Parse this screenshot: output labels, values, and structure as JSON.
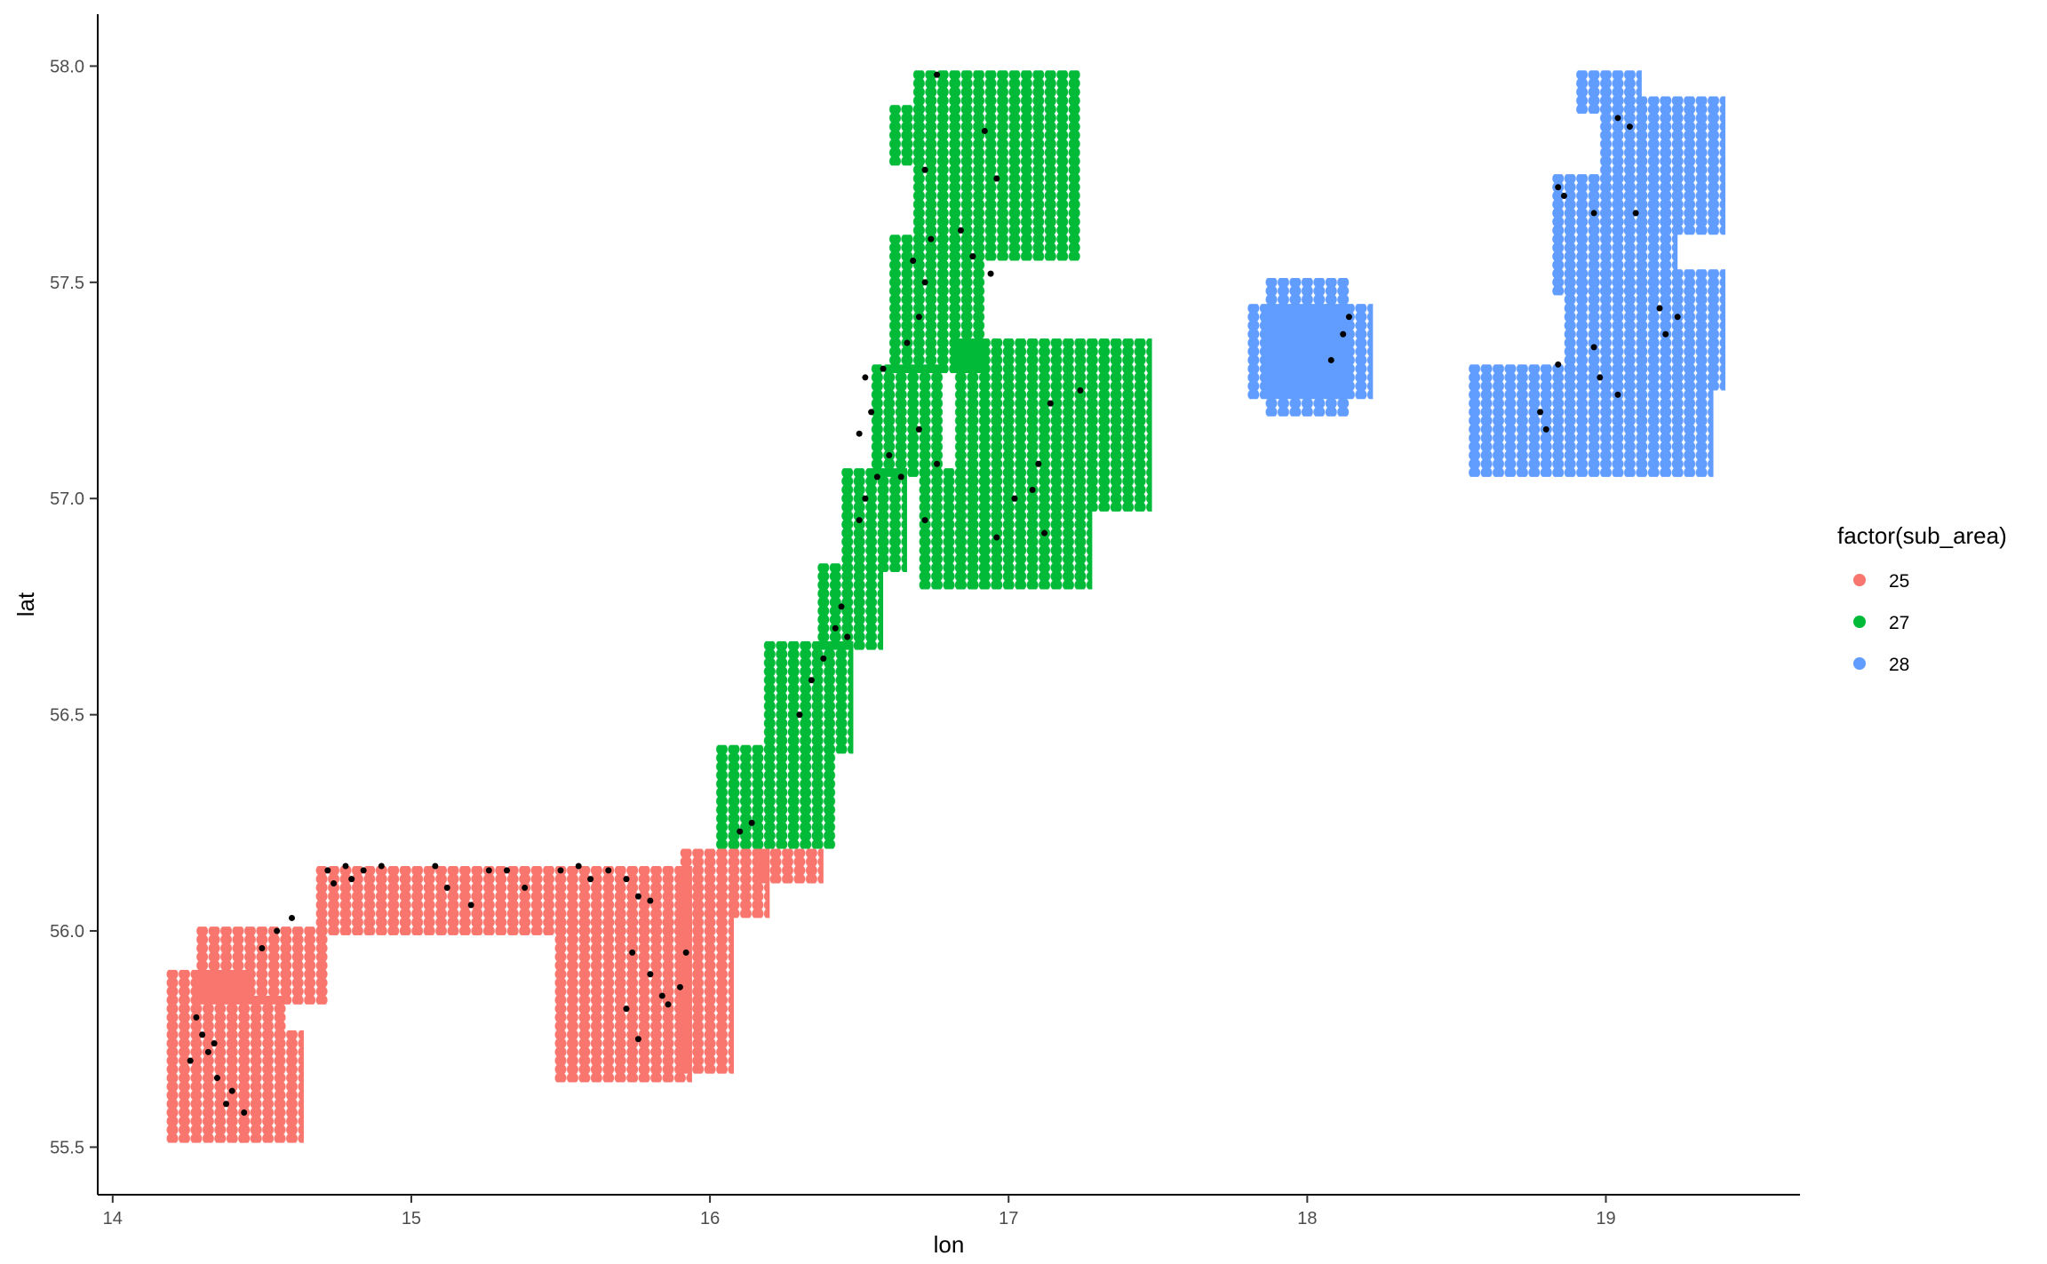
{
  "chart_data": {
    "type": "scatter",
    "title": "",
    "xlabel": "lon",
    "ylabel": "lat",
    "xlim": [
      13.95,
      19.65
    ],
    "ylim": [
      55.39,
      58.12
    ],
    "xticks": [
      14,
      15,
      16,
      17,
      18,
      19
    ],
    "yticks": [
      55.5,
      56.0,
      56.5,
      57.0,
      57.5,
      58.0
    ],
    "xtick_labels": [
      "14",
      "15",
      "16",
      "17",
      "18",
      "19"
    ],
    "ytick_labels": [
      "55.5",
      "56.0",
      "56.5",
      "57.0",
      "57.5",
      "58.0"
    ],
    "grid": false,
    "legend": {
      "title": "factor(sub_area)",
      "position": "right",
      "entries": [
        {
          "label": "25",
          "color": "#F8766D"
        },
        {
          "label": "27",
          "color": "#00BA38"
        },
        {
          "label": "28",
          "color": "#619CFF"
        }
      ]
    },
    "grid_spacing": {
      "lon": 0.04,
      "lat": 0.02
    },
    "series": [
      {
        "name": "25",
        "color": "#F8766D",
        "regions": [
          {
            "lon": [
              14.2,
              14.44
            ],
            "lat": [
              55.52,
              55.9
            ]
          },
          {
            "lon": [
              14.44,
              14.62
            ],
            "lat": [
              55.52,
              55.76
            ]
          },
          {
            "lon": [
              14.44,
              14.56
            ],
            "lat": [
              55.76,
              55.84
            ]
          },
          {
            "lon": [
              14.3,
              14.7
            ],
            "lat": [
              55.84,
              56.0
            ]
          },
          {
            "lon": [
              14.7,
              15.92
            ],
            "lat": [
              56.0,
              56.14
            ]
          },
          {
            "lon": [
              15.5,
              15.92
            ],
            "lat": [
              55.66,
              56.02
            ]
          },
          {
            "lon": [
              15.92,
              16.06
            ],
            "lat": [
              55.68,
              56.1
            ]
          },
          {
            "lon": [
              15.92,
              16.18
            ],
            "lat": [
              56.04,
              56.18
            ]
          },
          {
            "lon": [
              16.18,
              16.36
            ],
            "lat": [
              56.12,
              56.18
            ]
          }
        ]
      },
      {
        "name": "27",
        "color": "#00BA38",
        "regions": [
          {
            "lon": [
              16.04,
              16.4
            ],
            "lat": [
              56.2,
              56.42
            ]
          },
          {
            "lon": [
              16.2,
              16.46
            ],
            "lat": [
              56.42,
              56.66
            ]
          },
          {
            "lon": [
              16.38,
              16.56
            ],
            "lat": [
              56.66,
              56.84
            ]
          },
          {
            "lon": [
              16.46,
              16.64
            ],
            "lat": [
              56.84,
              57.06
            ]
          },
          {
            "lon": [
              16.56,
              16.76
            ],
            "lat": [
              57.06,
              57.3
            ]
          },
          {
            "lon": [
              16.62,
              16.9
            ],
            "lat": [
              57.3,
              57.6
            ]
          },
          {
            "lon": [
              16.7,
              17.22
            ],
            "lat": [
              57.56,
              57.98
            ]
          },
          {
            "lon": [
              16.62,
              16.72
            ],
            "lat": [
              57.78,
              57.9
            ]
          },
          {
            "lon": [
              16.72,
              16.92
            ],
            "lat": [
              56.8,
              57.06
            ]
          },
          {
            "lon": [
              16.84,
              17.46
            ],
            "lat": [
              56.98,
              57.36
            ]
          },
          {
            "lon": [
              16.84,
              17.26
            ],
            "lat": [
              56.8,
              56.98
            ]
          }
        ]
      },
      {
        "name": "28",
        "color": "#619CFF",
        "regions": [
          {
            "lon": [
              17.82,
              18.2
            ],
            "lat": [
              57.24,
              57.44
            ]
          },
          {
            "lon": [
              17.88,
              18.12
            ],
            "lat": [
              57.2,
              57.5
            ]
          },
          {
            "lon": [
              18.56,
              19.34
            ],
            "lat": [
              57.06,
              57.3
            ]
          },
          {
            "lon": [
              18.88,
              19.38
            ],
            "lat": [
              57.26,
              57.52
            ]
          },
          {
            "lon": [
              18.84,
              19.22
            ],
            "lat": [
              57.48,
              57.74
            ]
          },
          {
            "lon": [
              19.0,
              19.38
            ],
            "lat": [
              57.62,
              57.92
            ]
          },
          {
            "lon": [
              18.92,
              19.1
            ],
            "lat": [
              57.9,
              57.98
            ]
          }
        ]
      },
      {
        "name": "",
        "color": "#000000",
        "marker": "small-dot",
        "points": [
          [
            14.28,
            55.8
          ],
          [
            14.3,
            55.76
          ],
          [
            14.32,
            55.72
          ],
          [
            14.35,
            55.66
          ],
          [
            14.38,
            55.6
          ],
          [
            14.44,
            55.58
          ],
          [
            14.26,
            55.7
          ],
          [
            14.4,
            55.63
          ],
          [
            14.5,
            55.96
          ],
          [
            14.6,
            56.03
          ],
          [
            14.55,
            56.0
          ],
          [
            14.34,
            55.74
          ],
          [
            14.72,
            56.14
          ],
          [
            14.78,
            56.15
          ],
          [
            14.84,
            56.14
          ],
          [
            14.9,
            56.15
          ],
          [
            14.74,
            56.11
          ],
          [
            14.8,
            56.12
          ],
          [
            15.08,
            56.15
          ],
          [
            15.12,
            56.1
          ],
          [
            15.2,
            56.06
          ],
          [
            15.26,
            56.14
          ],
          [
            15.32,
            56.14
          ],
          [
            15.38,
            56.1
          ],
          [
            15.5,
            56.14
          ],
          [
            15.56,
            56.15
          ],
          [
            15.6,
            56.12
          ],
          [
            15.66,
            56.14
          ],
          [
            15.72,
            56.12
          ],
          [
            15.76,
            56.08
          ],
          [
            15.8,
            56.07
          ],
          [
            15.74,
            55.95
          ],
          [
            15.72,
            55.82
          ],
          [
            15.8,
            55.9
          ],
          [
            15.84,
            55.85
          ],
          [
            15.86,
            55.83
          ],
          [
            15.9,
            55.87
          ],
          [
            15.76,
            55.75
          ],
          [
            15.92,
            55.95
          ],
          [
            16.1,
            56.23
          ],
          [
            16.14,
            56.25
          ],
          [
            16.3,
            56.5
          ],
          [
            16.34,
            56.58
          ],
          [
            16.38,
            56.63
          ],
          [
            16.42,
            56.7
          ],
          [
            16.44,
            56.75
          ],
          [
            16.46,
            56.68
          ],
          [
            16.5,
            56.95
          ],
          [
            16.52,
            57.0
          ],
          [
            16.56,
            57.05
          ],
          [
            16.5,
            57.15
          ],
          [
            16.54,
            57.2
          ],
          [
            16.6,
            57.1
          ],
          [
            16.64,
            57.05
          ],
          [
            16.52,
            57.28
          ],
          [
            16.58,
            57.3
          ],
          [
            16.66,
            57.36
          ],
          [
            16.7,
            57.42
          ],
          [
            16.72,
            57.5
          ],
          [
            16.68,
            57.55
          ],
          [
            16.74,
            57.6
          ],
          [
            16.72,
            57.76
          ],
          [
            16.76,
            57.98
          ],
          [
            16.92,
            57.85
          ],
          [
            16.96,
            57.74
          ],
          [
            16.84,
            57.62
          ],
          [
            16.88,
            57.56
          ],
          [
            16.94,
            57.52
          ],
          [
            16.7,
            57.16
          ],
          [
            16.76,
            57.08
          ],
          [
            16.72,
            56.95
          ],
          [
            17.24,
            57.25
          ],
          [
            17.14,
            57.22
          ],
          [
            17.1,
            57.08
          ],
          [
            17.08,
            57.02
          ],
          [
            17.12,
            56.92
          ],
          [
            17.02,
            57.0
          ],
          [
            16.96,
            56.91
          ],
          [
            18.08,
            57.32
          ],
          [
            18.12,
            57.38
          ],
          [
            18.14,
            57.42
          ],
          [
            18.84,
            57.72
          ],
          [
            18.86,
            57.7
          ],
          [
            18.96,
            57.66
          ],
          [
            19.04,
            57.88
          ],
          [
            19.08,
            57.86
          ],
          [
            19.1,
            57.66
          ],
          [
            19.18,
            57.44
          ],
          [
            19.24,
            57.42
          ],
          [
            18.8,
            57.16
          ],
          [
            18.78,
            57.2
          ],
          [
            18.84,
            57.31
          ],
          [
            18.96,
            57.35
          ],
          [
            18.98,
            57.28
          ],
          [
            19.04,
            57.24
          ],
          [
            19.2,
            57.38
          ]
        ]
      }
    ]
  }
}
